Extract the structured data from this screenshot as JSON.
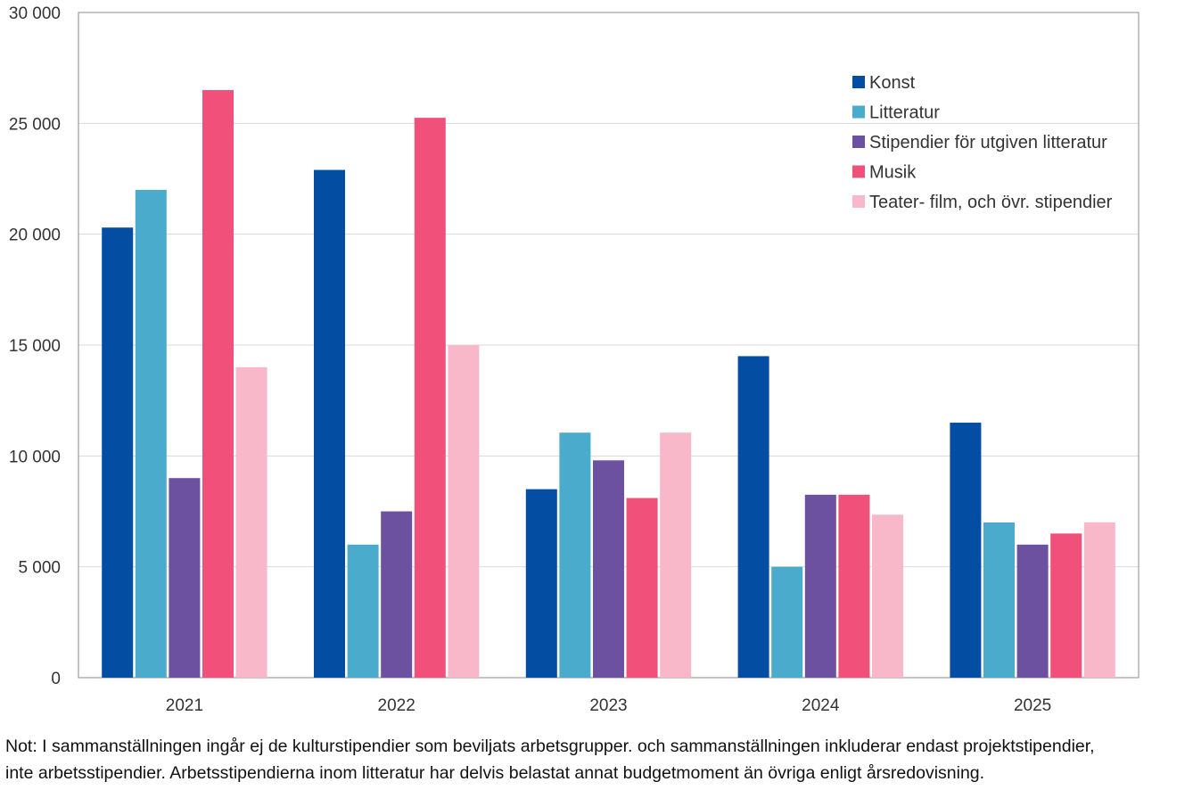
{
  "chart_data": {
    "type": "bar",
    "categories": [
      "2021",
      "2022",
      "2023",
      "2024",
      "2025"
    ],
    "series": [
      {
        "name": "Konst",
        "color": "#034ea2",
        "values": [
          20300,
          22900,
          8500,
          14500,
          11500
        ]
      },
      {
        "name": "Litteratur",
        "color": "#4babcd",
        "values": [
          22000,
          6000,
          11050,
          5000,
          7000
        ]
      },
      {
        "name": "Stipendier för utgiven litteratur",
        "color": "#6d51a1",
        "values": [
          9000,
          7500,
          9800,
          8250,
          6000
        ]
      },
      {
        "name": "Musik",
        "color": "#f0507a",
        "values": [
          26500,
          25250,
          8100,
          8250,
          6500
        ]
      },
      {
        "name": "Teater- film, och övr. stipendier",
        "color": "#f8b8c9",
        "values": [
          14000,
          15000,
          11050,
          7350,
          7000
        ]
      }
    ],
    "y_ticks": [
      "0",
      "5 000",
      "10 000",
      "15 000",
      "20 000",
      "25 000",
      "30 000"
    ],
    "ylim": [
      0,
      30000
    ],
    "grid": true,
    "legend_position": "top-right"
  },
  "note": {
    "line1": "Not: I sammanställningen ingår ej de kulturstipendier som beviljats arbetsgrupper. och sammanställningen inkluderar endast projektstipendier,",
    "line2": "inte arbetsstipendier. Arbetsstipendierna inom litteratur har delvis belastat annat budgetmoment än övriga enligt årsredovisning."
  }
}
